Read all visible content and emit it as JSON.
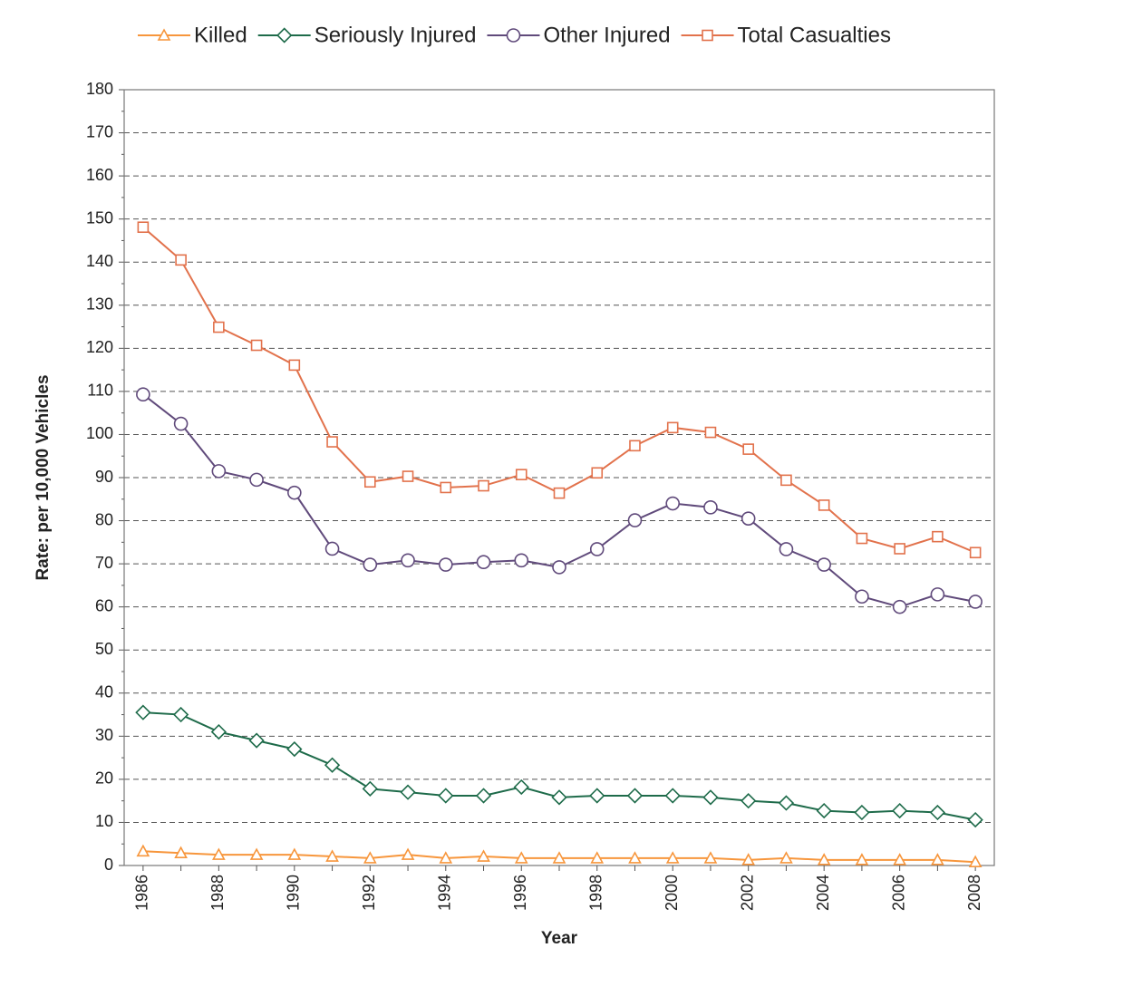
{
  "chart_data": {
    "type": "line",
    "x": [
      1986,
      1987,
      1988,
      1989,
      1990,
      1991,
      1992,
      1993,
      1994,
      1995,
      1996,
      1997,
      1998,
      1999,
      2000,
      2001,
      2002,
      2003,
      2004,
      2005,
      2006,
      2007,
      2008
    ],
    "xticks": [
      1986,
      1988,
      1990,
      1992,
      1994,
      1996,
      1998,
      2000,
      2002,
      2004,
      2006,
      2008
    ],
    "xlim": [
      1985.5,
      2008.5
    ],
    "x_label": "Year",
    "y_label": "Rate: per 10,000 Vehicles",
    "ylim": [
      0,
      180
    ],
    "yticks": [
      0,
      10,
      20,
      30,
      40,
      50,
      60,
      70,
      80,
      90,
      100,
      110,
      120,
      130,
      140,
      150,
      160,
      170,
      180
    ],
    "grid": true,
    "legend": "top",
    "series": [
      {
        "name": "Killed",
        "color": "#f7963c",
        "marker": "triangle",
        "values": [
          3.3,
          2.9,
          2.5,
          2.5,
          2.5,
          2.1,
          1.7,
          2.5,
          1.7,
          2.1,
          1.7,
          1.7,
          1.7,
          1.7,
          1.7,
          1.7,
          1.3,
          1.7,
          1.3,
          1.3,
          1.3,
          1.3,
          0.8
        ]
      },
      {
        "name": "Seriously Injured",
        "color": "#1e6b4a",
        "marker": "diamond",
        "values": [
          35.5,
          35,
          31,
          29,
          27,
          23.3,
          17.8,
          17,
          16.2,
          16.2,
          18.2,
          15.8,
          16.2,
          16.2,
          16.2,
          15.8,
          15,
          14.5,
          12.7,
          12.3,
          12.7,
          12.3,
          10.6
        ]
      },
      {
        "name": "Other Injured",
        "color": "#604a7b",
        "marker": "circle",
        "values": [
          109.3,
          102.5,
          91.5,
          89.5,
          86.5,
          73.5,
          69.8,
          70.8,
          69.8,
          70.4,
          70.8,
          69.2,
          73.4,
          80.1,
          84,
          83.1,
          80.5,
          73.4,
          69.8,
          62.4,
          60,
          62.9,
          61.2
        ]
      },
      {
        "name": "Total Casualties",
        "color": "#e2724c",
        "marker": "square",
        "values": [
          148.1,
          140.5,
          124.9,
          120.7,
          116.1,
          98.3,
          89,
          90.3,
          87.7,
          88.1,
          90.7,
          86.4,
          91.1,
          97.4,
          101.6,
          100.5,
          96.6,
          89.4,
          83.6,
          75.9,
          73.5,
          76.3,
          72.6
        ]
      }
    ]
  }
}
